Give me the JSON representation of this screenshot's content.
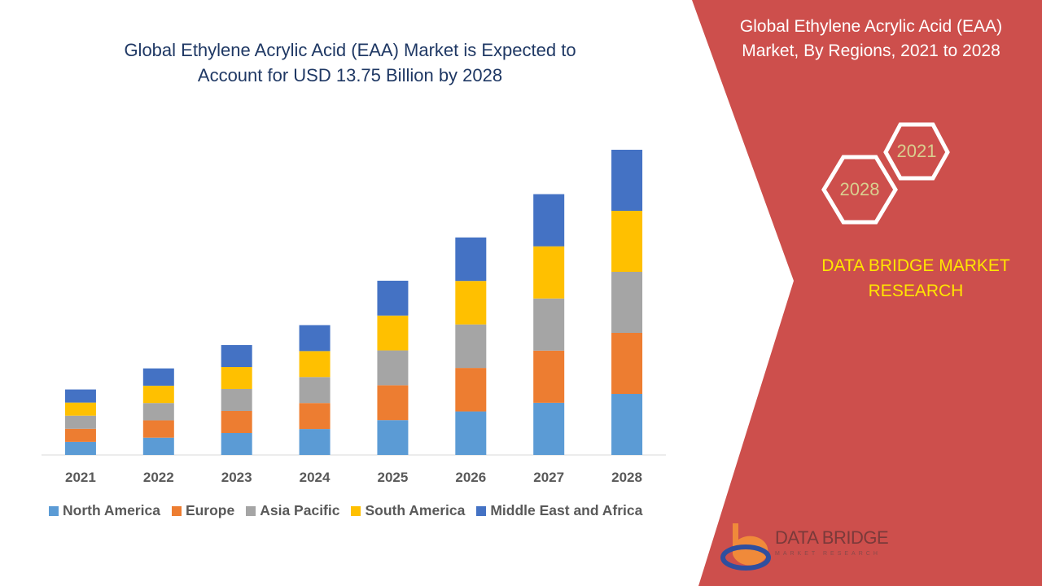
{
  "header": {
    "title_line1": "Global Ethylene Acrylic Acid (EAA) Market is Expected to",
    "title_line2": "Account for USD 13.75 Billion by 2028"
  },
  "side_panel": {
    "title_line1": "Global Ethylene Acrylic Acid (EAA)",
    "title_line2": "Market, By Regions, 2021 to 2028",
    "hex_start": "2021",
    "hex_end": "2028",
    "brand_line1": "DATA BRIDGE MARKET",
    "brand_line2": "RESEARCH",
    "logo_text": "DATA BRIDGE",
    "logo_subtext": "MARKET RESEARCH",
    "panel_color": "#CD4F4C"
  },
  "chart_data": {
    "type": "bar",
    "stacked": true,
    "title": "",
    "xlabel": "",
    "ylabel": "",
    "ylim": [
      0,
      13.75
    ],
    "grid": false,
    "legend_position": "bottom",
    "categories": [
      "2021",
      "2022",
      "2023",
      "2024",
      "2025",
      "2026",
      "2027",
      "2028"
    ],
    "series": [
      {
        "name": "North America",
        "color": "#5B9BD5",
        "values": [
          0.59,
          0.78,
          0.99,
          1.17,
          1.57,
          1.96,
          2.35,
          2.75
        ]
      },
      {
        "name": "Europe",
        "color": "#ED7D31",
        "values": [
          0.59,
          0.78,
          0.99,
          1.17,
          1.57,
          1.96,
          2.35,
          2.75
        ]
      },
      {
        "name": "Asia Pacific",
        "color": "#A5A5A5",
        "values": [
          0.59,
          0.78,
          0.99,
          1.17,
          1.57,
          1.96,
          2.35,
          2.75
        ]
      },
      {
        "name": "South America",
        "color": "#FFC000",
        "values": [
          0.59,
          0.78,
          0.99,
          1.17,
          1.57,
          1.96,
          2.35,
          2.75
        ]
      },
      {
        "name": "Middle East and Africa",
        "color": "#4472C4",
        "values": [
          0.59,
          0.78,
          0.99,
          1.17,
          1.57,
          1.96,
          2.35,
          2.75
        ]
      }
    ]
  }
}
